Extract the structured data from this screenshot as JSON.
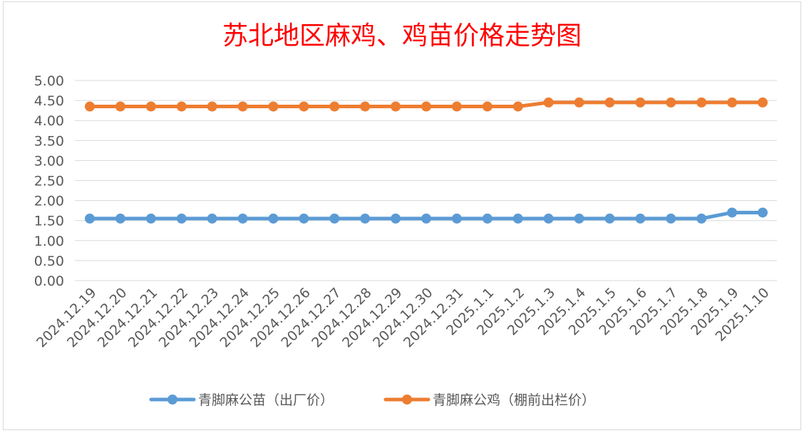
{
  "chart_data": {
    "type": "line",
    "title": "苏北地区麻鸡、鸡苗价格走势图",
    "xlabel": "",
    "ylabel": "",
    "categories": [
      "2024.12.19",
      "2024.12.20",
      "2024.12.21",
      "2024.12.22",
      "2024.12.23",
      "2024.12.24",
      "2024.12.25",
      "2024.12.26",
      "2024.12.27",
      "2024.12.28",
      "2024.12.29",
      "2024.12.30",
      "2024.12.31",
      "2025.1.1",
      "2025.1.2",
      "2025.1.3",
      "2025.1.4",
      "2025.1.5",
      "2025.1.6",
      "2025.1.7",
      "2025.1.8",
      "2025.1.9",
      "2025.1.10"
    ],
    "y_ticks": [
      "0.00",
      "0.50",
      "1.00",
      "1.50",
      "2.00",
      "2.50",
      "3.00",
      "3.50",
      "4.00",
      "4.50",
      "5.00"
    ],
    "ylim": [
      0,
      5
    ],
    "grid": true,
    "legend_position": "bottom",
    "series": [
      {
        "name": "青脚麻公苗（出厂价）",
        "color": "#5b9bd5",
        "values": [
          1.55,
          1.55,
          1.55,
          1.55,
          1.55,
          1.55,
          1.55,
          1.55,
          1.55,
          1.55,
          1.55,
          1.55,
          1.55,
          1.55,
          1.55,
          1.55,
          1.55,
          1.55,
          1.55,
          1.55,
          1.55,
          1.7,
          1.7
        ]
      },
      {
        "name": "青脚麻公鸡（棚前出栏价）",
        "color": "#ed7d31",
        "values": [
          4.35,
          4.35,
          4.35,
          4.35,
          4.35,
          4.35,
          4.35,
          4.35,
          4.35,
          4.35,
          4.35,
          4.35,
          4.35,
          4.35,
          4.35,
          4.45,
          4.45,
          4.45,
          4.45,
          4.45,
          4.45,
          4.45,
          4.45
        ]
      }
    ]
  }
}
